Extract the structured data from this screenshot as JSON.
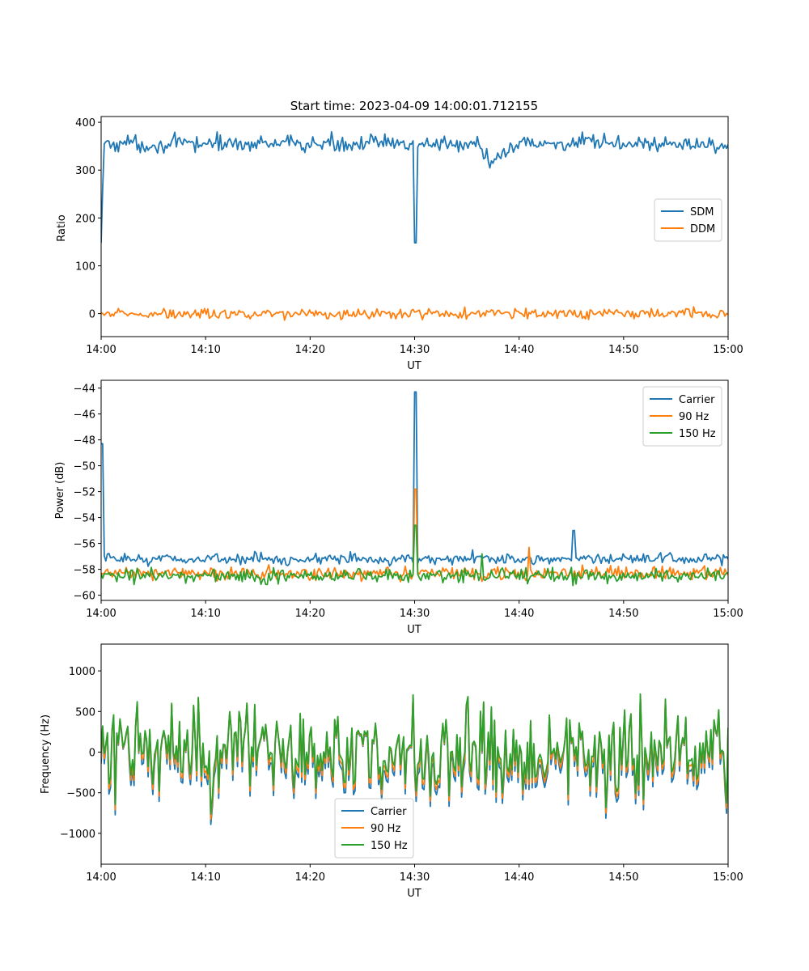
{
  "figure": {
    "title": "Start time: 2023-04-09 14:00:01.712155"
  },
  "colors": {
    "blue": "#1f77b4",
    "orange": "#ff7f0e",
    "green": "#2ca02c"
  },
  "chart_data": [
    {
      "type": "line",
      "title": "Start time: 2023-04-09 14:00:01.712155",
      "xlabel": "UT",
      "ylabel": "Ratio",
      "xlim": [
        "14:00",
        "15:00"
      ],
      "ylim": [
        -48,
        412
      ],
      "xticks": [
        "14:00",
        "14:10",
        "14:20",
        "14:30",
        "14:40",
        "14:50",
        "15:00"
      ],
      "yticks": [
        0,
        100,
        200,
        300,
        400
      ],
      "legend": "center-right",
      "series": [
        {
          "name": "SDM",
          "color": "#1f77b4",
          "mean": 355,
          "noise": 16,
          "x_minutes": [
            0.0,
            0.3,
            0.6,
            1.0,
            2.0,
            5.0,
            10.0,
            15.0,
            20.0,
            25.0,
            29.0,
            29.9,
            30.05,
            30.2,
            33.0,
            36.0,
            37.4,
            40.0,
            45.0,
            50.0,
            55.0,
            60.0
          ],
          "y": [
            148,
            365,
            350,
            355,
            358,
            352,
            356,
            355,
            354,
            357,
            353,
            355,
            148,
            355,
            356,
            355,
            310,
            357,
            355,
            356,
            354,
            352
          ]
        },
        {
          "name": "DDM",
          "color": "#ff7f0e",
          "mean": 0,
          "noise": 10,
          "x_minutes": [
            0,
            10,
            20,
            30,
            40,
            50,
            60
          ],
          "y": [
            0,
            0,
            0,
            0,
            0,
            0,
            0
          ]
        }
      ]
    },
    {
      "type": "line",
      "title": "",
      "xlabel": "UT",
      "ylabel": "Power (dB)",
      "xlim": [
        "14:00",
        "15:00"
      ],
      "ylim": [
        -60.4,
        -43.4
      ],
      "xticks": [
        "14:00",
        "14:10",
        "14:20",
        "14:30",
        "14:40",
        "14:50",
        "15:00"
      ],
      "yticks": [
        -44,
        -46,
        -48,
        -50,
        -52,
        -54,
        -56,
        -58,
        -60
      ],
      "legend": "upper-right",
      "series": [
        {
          "name": "Carrier",
          "color": "#1f77b4",
          "mean": -57.2,
          "noise": 0.35,
          "peaks": [
            [
              0.05,
              -48.3
            ],
            [
              30.05,
              -44.3
            ],
            [
              45.2,
              -55.0
            ],
            [
              35.5,
              -56.5
            ]
          ]
        },
        {
          "name": "90 Hz",
          "color": "#ff7f0e",
          "mean": -58.3,
          "noise": 0.45,
          "peaks": [
            [
              30.05,
              -51.8
            ],
            [
              41.0,
              -56.3
            ]
          ]
        },
        {
          "name": "150 Hz",
          "color": "#2ca02c",
          "mean": -58.5,
          "noise": 0.45,
          "peaks": [
            [
              30.05,
              -54.6
            ],
            [
              36.5,
              -56.8
            ]
          ]
        }
      ]
    },
    {
      "type": "line",
      "title": "",
      "xlabel": "UT",
      "ylabel": "Frequency (Hz)",
      "xlim": [
        "14:00",
        "15:00"
      ],
      "ylim": [
        -1380,
        1330
      ],
      "xticks": [
        "14:00",
        "14:10",
        "14:20",
        "14:30",
        "14:40",
        "14:50",
        "15:00"
      ],
      "yticks": [
        1000,
        500,
        0,
        -500,
        -1000
      ],
      "legend": "lower-center",
      "series": [
        {
          "name": "Carrier",
          "color": "#1f77b4",
          "offset": -80,
          "noise": 430
        },
        {
          "name": "90 Hz",
          "color": "#ff7f0e",
          "offset": -40,
          "noise": 430
        },
        {
          "name": "150 Hz",
          "color": "#2ca02c",
          "offset": 0,
          "noise": 430
        }
      ]
    }
  ]
}
